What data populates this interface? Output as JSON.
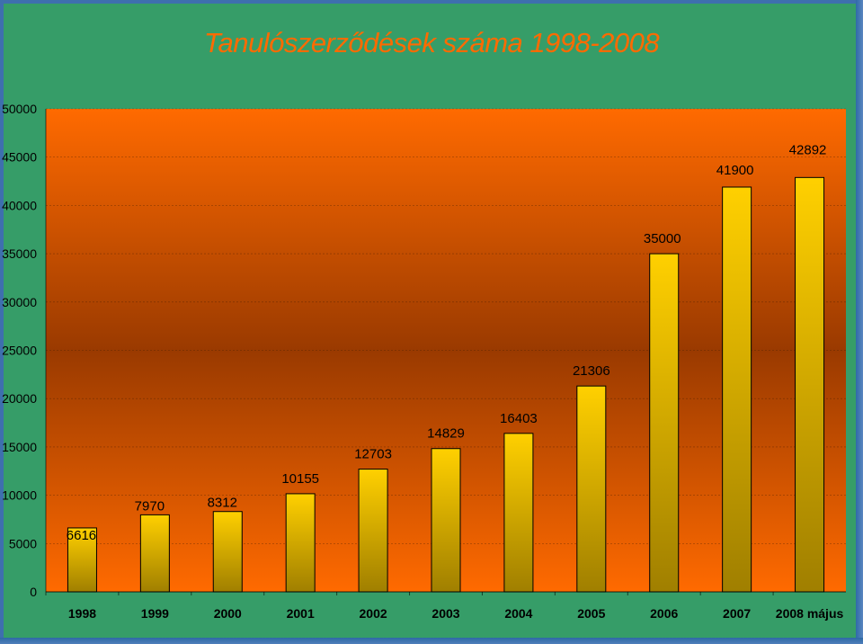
{
  "slide": {
    "background": "#369d68",
    "frame_color": "#3e6fae"
  },
  "chart_data": {
    "type": "bar",
    "title": "Tanulószerződések száma 1998-2008",
    "title_color": "#ff6a00",
    "categories": [
      "1998",
      "1999",
      "2000",
      "2001",
      "2002",
      "2003",
      "2004",
      "2005",
      "2006",
      "2007",
      "2008 május"
    ],
    "values": [
      6616,
      7970,
      8312,
      10155,
      12703,
      14829,
      16403,
      21306,
      35000,
      41900,
      42892
    ],
    "data_labels": [
      "6616",
      "7970",
      "8312",
      "10155",
      "12703",
      "14829",
      "16403",
      "21306",
      "35000",
      "41900",
      "42892"
    ],
    "y_ticks": [
      "0",
      "5000",
      "10000",
      "15000",
      "20000",
      "25000",
      "30000",
      "35000",
      "40000",
      "45000",
      "50000"
    ],
    "ylim": [
      0,
      50000
    ],
    "xlabel": "",
    "ylabel": "",
    "grid": true,
    "legend": "none",
    "colors": {
      "bar_top": "#ffd000",
      "bar_bottom": "#a07f00",
      "bar_outline": "#000000",
      "plot_bg_edge": "#ff6a00",
      "plot_bg_center": "#9a3a00",
      "gridline": "#000000"
    }
  }
}
